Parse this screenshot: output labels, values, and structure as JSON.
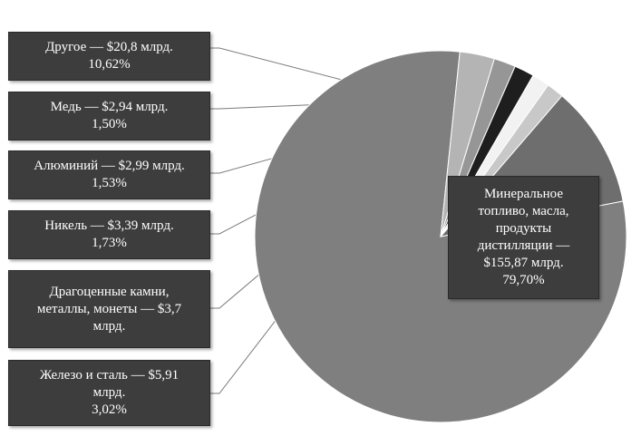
{
  "chart_data": {
    "type": "pie",
    "title": "",
    "legend": "none",
    "slices": [
      {
        "key": "mineral",
        "name": "Минеральное топливо, масла, продукты дистилляции",
        "line1": "Минеральное",
        "line2": "топливо, масла,",
        "line3": "продукты",
        "line4": "дистилляции —",
        "value_text": "$155,87 млрд.",
        "value": 155.87,
        "percent": "79,70%",
        "pct": 79.7,
        "color": "#7f7f7f"
      },
      {
        "key": "iron",
        "name": "Железо и сталь",
        "line1": "Железо и сталь — $5,91",
        "line2": "млрд.",
        "percent": "3,02%",
        "value": 5.91,
        "pct": 3.02,
        "color": "#b4b4b4"
      },
      {
        "key": "gems",
        "name": "Драгоценные камни, металлы, монеты",
        "line1": "Драгоценные камни,",
        "line2": "металлы, монеты — $3,7",
        "line3": "млрд.",
        "value": 3.7,
        "pct": 1.89,
        "color": "#969696"
      },
      {
        "key": "nickel",
        "name": "Никель",
        "line1": "Никель — $3,39 млрд.",
        "percent": "1,73%",
        "value": 3.39,
        "pct": 1.73,
        "color": "#1e1e1e"
      },
      {
        "key": "aluminum",
        "name": "Алюминий",
        "line1": "Алюминий — $2,99 млрд.",
        "percent": "1,53%",
        "value": 2.99,
        "pct": 1.53,
        "color": "#f2f2f2"
      },
      {
        "key": "copper",
        "name": "Медь",
        "line1": "Медь — $2,94 млрд.",
        "percent": "1,50%",
        "value": 2.94,
        "pct": 1.5,
        "color": "#c8c8c8"
      },
      {
        "key": "other",
        "name": "Другое",
        "line1": "Другое — $20,8 млрд.",
        "percent": "10,62%",
        "value": 20.8,
        "pct": 10.62,
        "color": "#6e6e6e"
      }
    ]
  }
}
